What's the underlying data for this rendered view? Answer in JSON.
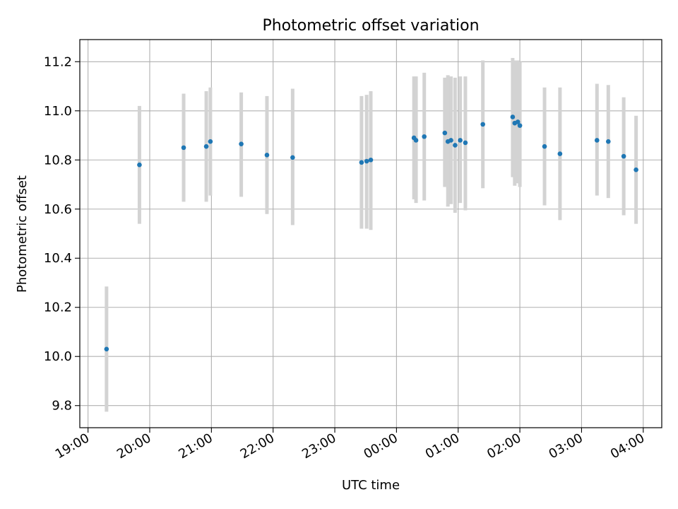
{
  "chart_data": {
    "type": "scatter",
    "title": "Photometric offset variation",
    "xlabel": "UTC time",
    "ylabel": "Photometric offset",
    "x_axis_type": "time",
    "x_start_day": "day 1",
    "x_tick_labels": [
      "19:00",
      "20:00",
      "21:00",
      "22:00",
      "23:00",
      "00:00",
      "01:00",
      "02:00",
      "03:00",
      "04:00"
    ],
    "x_ticks": [
      "19:00",
      "20:00",
      "21:00",
      "22:00",
      "23:00",
      "24:00",
      "25:00",
      "26:00",
      "27:00",
      "28:00"
    ],
    "xlim": [
      "18:52",
      "28:18"
    ],
    "ylim": [
      9.71,
      11.29
    ],
    "y_ticks": [
      9.8,
      10.0,
      10.2,
      10.4,
      10.6,
      10.8,
      11.0,
      11.2
    ],
    "y_tick_labels": [
      "9.8",
      "10.0",
      "10.2",
      "10.4",
      "10.6",
      "10.8",
      "11.0",
      "11.2"
    ],
    "grid": true,
    "marker_color": "#1f77b4",
    "errorbar_color": "#d3d3d3",
    "points": [
      {
        "x": "19:18",
        "y": 10.03,
        "ylow": 9.775,
        "yhigh": 10.285
      },
      {
        "x": "19:50",
        "y": 10.78,
        "ylow": 10.54,
        "yhigh": 11.02
      },
      {
        "x": "20:33",
        "y": 10.85,
        "ylow": 10.63,
        "yhigh": 11.07
      },
      {
        "x": "20:55",
        "y": 10.855,
        "ylow": 10.63,
        "yhigh": 11.08
      },
      {
        "x": "20:59",
        "y": 10.875,
        "ylow": 10.655,
        "yhigh": 11.095
      },
      {
        "x": "21:29",
        "y": 10.865,
        "ylow": 10.65,
        "yhigh": 11.075
      },
      {
        "x": "21:54",
        "y": 10.82,
        "ylow": 10.58,
        "yhigh": 11.06
      },
      {
        "x": "22:19",
        "y": 10.81,
        "ylow": 10.535,
        "yhigh": 11.09
      },
      {
        "x": "23:26",
        "y": 10.79,
        "ylow": 10.52,
        "yhigh": 11.06
      },
      {
        "x": "23:31",
        "y": 10.795,
        "ylow": 10.52,
        "yhigh": 11.065
      },
      {
        "x": "23:35",
        "y": 10.8,
        "ylow": 10.515,
        "yhigh": 11.08
      },
      {
        "x": "24:17",
        "y": 10.89,
        "ylow": 10.64,
        "yhigh": 11.14
      },
      {
        "x": "24:19",
        "y": 10.88,
        "ylow": 10.625,
        "yhigh": 11.14
      },
      {
        "x": "24:27",
        "y": 10.895,
        "ylow": 10.635,
        "yhigh": 11.155
      },
      {
        "x": "24:47",
        "y": 10.91,
        "ylow": 10.69,
        "yhigh": 11.135
      },
      {
        "x": "24:50",
        "y": 10.875,
        "ylow": 10.61,
        "yhigh": 11.145
      },
      {
        "x": "24:53",
        "y": 10.88,
        "ylow": 10.62,
        "yhigh": 11.14
      },
      {
        "x": "24:57",
        "y": 10.86,
        "ylow": 10.585,
        "yhigh": 11.135
      },
      {
        "x": "25:02",
        "y": 10.88,
        "ylow": 10.625,
        "yhigh": 11.14
      },
      {
        "x": "25:07",
        "y": 10.87,
        "ylow": 10.595,
        "yhigh": 11.14
      },
      {
        "x": "25:24",
        "y": 10.945,
        "ylow": 10.685,
        "yhigh": 11.205
      },
      {
        "x": "25:53",
        "y": 10.975,
        "ylow": 10.73,
        "yhigh": 11.215
      },
      {
        "x": "25:55",
        "y": 10.95,
        "ylow": 10.695,
        "yhigh": 11.205
      },
      {
        "x": "25:58",
        "y": 10.955,
        "ylow": 10.705,
        "yhigh": 11.205
      },
      {
        "x": "26:00",
        "y": 10.94,
        "ylow": 10.69,
        "yhigh": 11.2
      },
      {
        "x": "26:24",
        "y": 10.855,
        "ylow": 10.615,
        "yhigh": 11.095
      },
      {
        "x": "26:39",
        "y": 10.825,
        "ylow": 10.555,
        "yhigh": 11.095
      },
      {
        "x": "27:15",
        "y": 10.88,
        "ylow": 10.655,
        "yhigh": 11.11
      },
      {
        "x": "27:26",
        "y": 10.875,
        "ylow": 10.645,
        "yhigh": 11.105
      },
      {
        "x": "27:41",
        "y": 10.815,
        "ylow": 10.575,
        "yhigh": 11.055
      },
      {
        "x": "27:53",
        "y": 10.76,
        "ylow": 10.54,
        "yhigh": 10.98
      }
    ]
  }
}
